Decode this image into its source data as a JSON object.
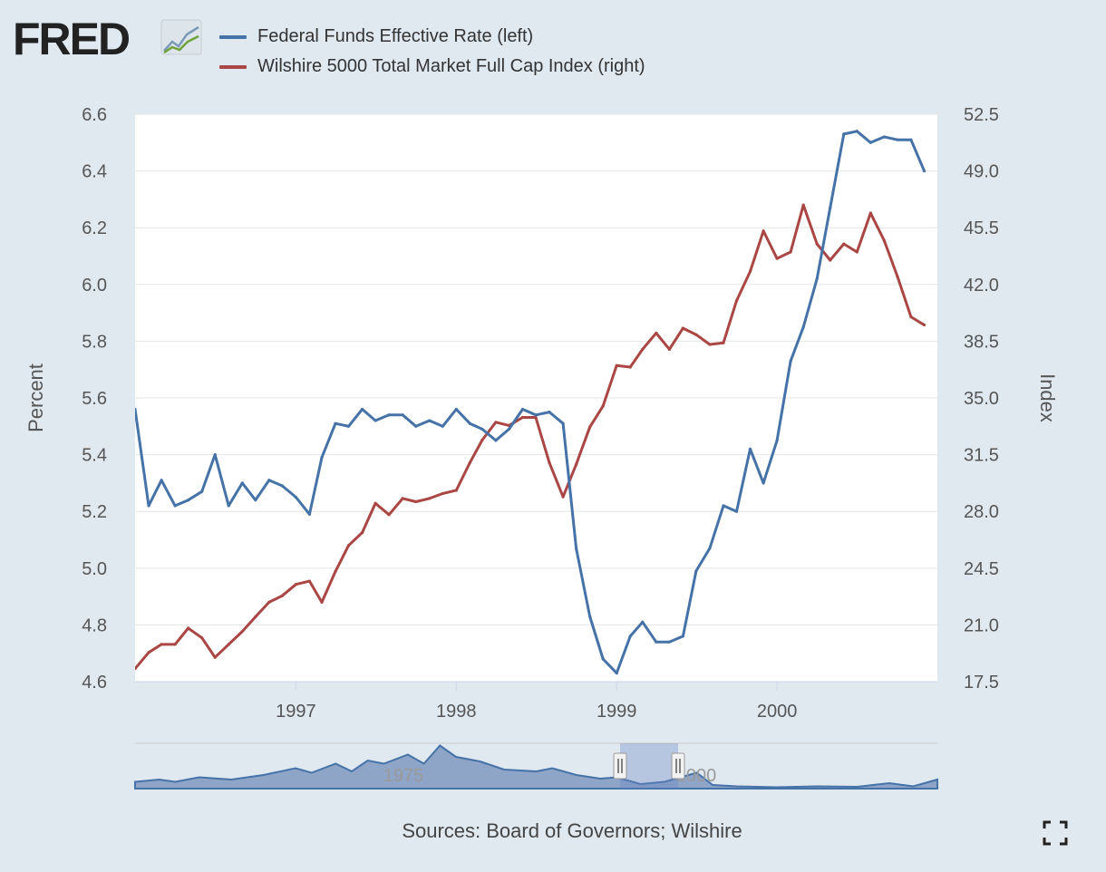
{
  "logo": {
    "text": "FRED"
  },
  "legend": [
    {
      "label": "Federal Funds Effective Rate (left)",
      "color": "#4572a7"
    },
    {
      "label": "Wilshire 5000 Total Market Full Cap Index (right)",
      "color": "#aa4643"
    }
  ],
  "sources": "Sources: Board of Governors; Wilshire",
  "navigator": {
    "labels": [
      "1975",
      "2000"
    ]
  },
  "chart_data": {
    "type": "line",
    "x_range": [
      "1996-01-01",
      "2000-12-31"
    ],
    "x_ticks": [
      "1997",
      "1998",
      "1999",
      "2000"
    ],
    "grid": true,
    "y_left": {
      "label": "Percent",
      "range": [
        4.6,
        6.6
      ],
      "ticks": [
        "4.6",
        "4.8",
        "5.0",
        "5.2",
        "5.4",
        "5.6",
        "5.8",
        "6.0",
        "6.2",
        "6.4",
        "6.6"
      ]
    },
    "y_right": {
      "label": "Index",
      "range": [
        17.5,
        52.5
      ],
      "ticks": [
        "17.5",
        "21.0",
        "24.5",
        "28.0",
        "31.5",
        "35.0",
        "38.5",
        "42.0",
        "45.5",
        "49.0",
        "52.5"
      ]
    },
    "series": [
      {
        "name": "Federal Funds Effective Rate (left)",
        "axis": "left",
        "color": "#4572a7",
        "x": [
          "1996-01",
          "1996-02",
          "1996-03",
          "1996-04",
          "1996-05",
          "1996-06",
          "1996-07",
          "1996-08",
          "1996-09",
          "1996-10",
          "1996-11",
          "1996-12",
          "1997-01",
          "1997-02",
          "1997-03",
          "1997-04",
          "1997-05",
          "1997-06",
          "1997-07",
          "1997-08",
          "1997-09",
          "1997-10",
          "1997-11",
          "1997-12",
          "1998-01",
          "1998-02",
          "1998-03",
          "1998-04",
          "1998-05",
          "1998-06",
          "1998-07",
          "1998-08",
          "1998-09",
          "1998-10",
          "1998-11",
          "1998-12",
          "1999-01",
          "1999-02",
          "1999-03",
          "1999-04",
          "1999-05",
          "1999-06",
          "1999-07",
          "1999-08",
          "1999-09",
          "1999-10",
          "1999-11",
          "1999-12",
          "2000-01",
          "2000-02",
          "2000-03",
          "2000-04",
          "2000-05",
          "2000-06",
          "2000-07",
          "2000-08",
          "2000-09",
          "2000-10",
          "2000-11",
          "2000-12"
        ],
        "values": [
          5.56,
          5.22,
          5.31,
          5.22,
          5.24,
          5.27,
          5.4,
          5.22,
          5.3,
          5.24,
          5.31,
          5.29,
          5.25,
          5.19,
          5.39,
          5.51,
          5.5,
          5.56,
          5.52,
          5.54,
          5.54,
          5.5,
          5.52,
          5.5,
          5.56,
          5.51,
          5.49,
          5.45,
          5.49,
          5.56,
          5.54,
          5.55,
          5.51,
          5.07,
          4.83,
          4.68,
          4.63,
          4.76,
          4.81,
          4.74,
          4.74,
          4.76,
          4.99,
          5.07,
          5.22,
          5.2,
          5.42,
          5.3,
          5.45,
          5.73,
          5.85,
          6.02,
          6.27,
          6.53,
          6.54,
          6.5,
          6.52,
          6.51,
          6.51,
          6.4
        ]
      },
      {
        "name": "Wilshire 5000 Total Market Full Cap Index (right)",
        "axis": "right",
        "color": "#aa4643",
        "x": [
          "1996-01",
          "1996-02",
          "1996-03",
          "1996-04",
          "1996-05",
          "1996-06",
          "1996-07",
          "1996-08",
          "1996-09",
          "1996-10",
          "1996-11",
          "1996-12",
          "1997-01",
          "1997-02",
          "1997-03",
          "1997-04",
          "1997-05",
          "1997-06",
          "1997-07",
          "1997-08",
          "1997-09",
          "1997-10",
          "1997-11",
          "1997-12",
          "1998-01",
          "1998-02",
          "1998-03",
          "1998-04",
          "1998-05",
          "1998-06",
          "1998-07",
          "1998-08",
          "1998-09",
          "1998-10",
          "1998-11",
          "1998-12",
          "1999-01",
          "1999-02",
          "1999-03",
          "1999-04",
          "1999-05",
          "1999-06",
          "1999-07",
          "1999-08",
          "1999-09",
          "1999-10",
          "1999-11",
          "1999-12",
          "2000-01",
          "2000-02",
          "2000-03",
          "2000-04",
          "2000-05",
          "2000-06",
          "2000-07",
          "2000-08",
          "2000-09",
          "2000-10",
          "2000-11",
          "2000-12"
        ],
        "values": [
          18.3,
          19.3,
          19.8,
          19.8,
          20.8,
          20.2,
          19.0,
          19.8,
          20.6,
          21.5,
          22.4,
          22.8,
          23.5,
          23.7,
          22.4,
          24.3,
          25.9,
          26.7,
          28.5,
          27.8,
          28.8,
          28.6,
          28.8,
          29.1,
          29.3,
          31.0,
          32.4,
          33.5,
          33.3,
          33.8,
          33.8,
          31.0,
          28.9,
          30.9,
          33.2,
          34.5,
          37.0,
          36.9,
          38.0,
          39.0,
          38.0,
          39.3,
          38.9,
          38.3,
          38.4,
          41.0,
          42.8,
          45.3,
          43.6,
          44.0,
          46.9,
          44.5,
          43.5,
          44.5,
          44.0,
          46.4,
          44.7,
          42.5,
          40.0,
          39.5
        ]
      }
    ]
  }
}
